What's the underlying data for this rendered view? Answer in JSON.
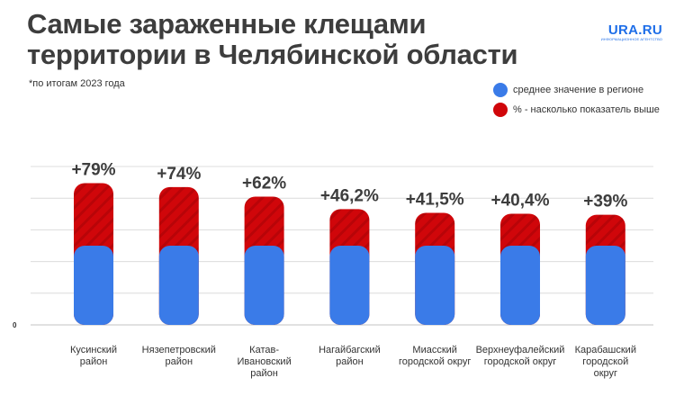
{
  "title_lines": [
    "Самые зараженные клещами",
    "территории в Челябинской области"
  ],
  "subtitle": "*по итогам 2023 года",
  "logo": {
    "text": "URA.RU",
    "tagline": "ИНФОРМАЦИОННОЕ АГЕНТСТВО"
  },
  "colors": {
    "base": "#3a7be8",
    "excess": "#d0060a",
    "excess_stripe": "#b80408",
    "grid": "#dcdcdc",
    "title": "#3d3d3d"
  },
  "legend": [
    {
      "label": "среднее значение в регионе",
      "color": "#3a7be8"
    },
    {
      "label": "% - насколько показатель выше",
      "color": "#d0060a"
    }
  ],
  "chart_data": {
    "type": "bar",
    "stacked": true,
    "title": "Самые зараженные клещами территории в Челябинской области",
    "zero_label": "0",
    "ylim": [
      0,
      200
    ],
    "categories": [
      [
        "Кусинский",
        "район"
      ],
      [
        "Нязепетровский",
        "район"
      ],
      [
        "Катав-",
        "Ивановский",
        "район"
      ],
      [
        "Нагайбагский",
        "район"
      ],
      [
        "Миасский",
        "городской округ"
      ],
      [
        "Верхнеуфалейский",
        "городской округ"
      ],
      [
        "Карабашский",
        "городской",
        "округ"
      ]
    ],
    "series": [
      {
        "name": "среднее значение в регионе",
        "values": [
          100,
          100,
          100,
          100,
          100,
          100,
          100
        ]
      },
      {
        "name": "% - насколько показатель выше",
        "values": [
          79,
          74,
          62,
          46.2,
          41.5,
          40.4,
          39
        ]
      }
    ],
    "labels": [
      "+79%",
      "+74%",
      "+62%",
      "+46,2%",
      "+41,5%",
      "+40,4%",
      "+39%"
    ]
  }
}
